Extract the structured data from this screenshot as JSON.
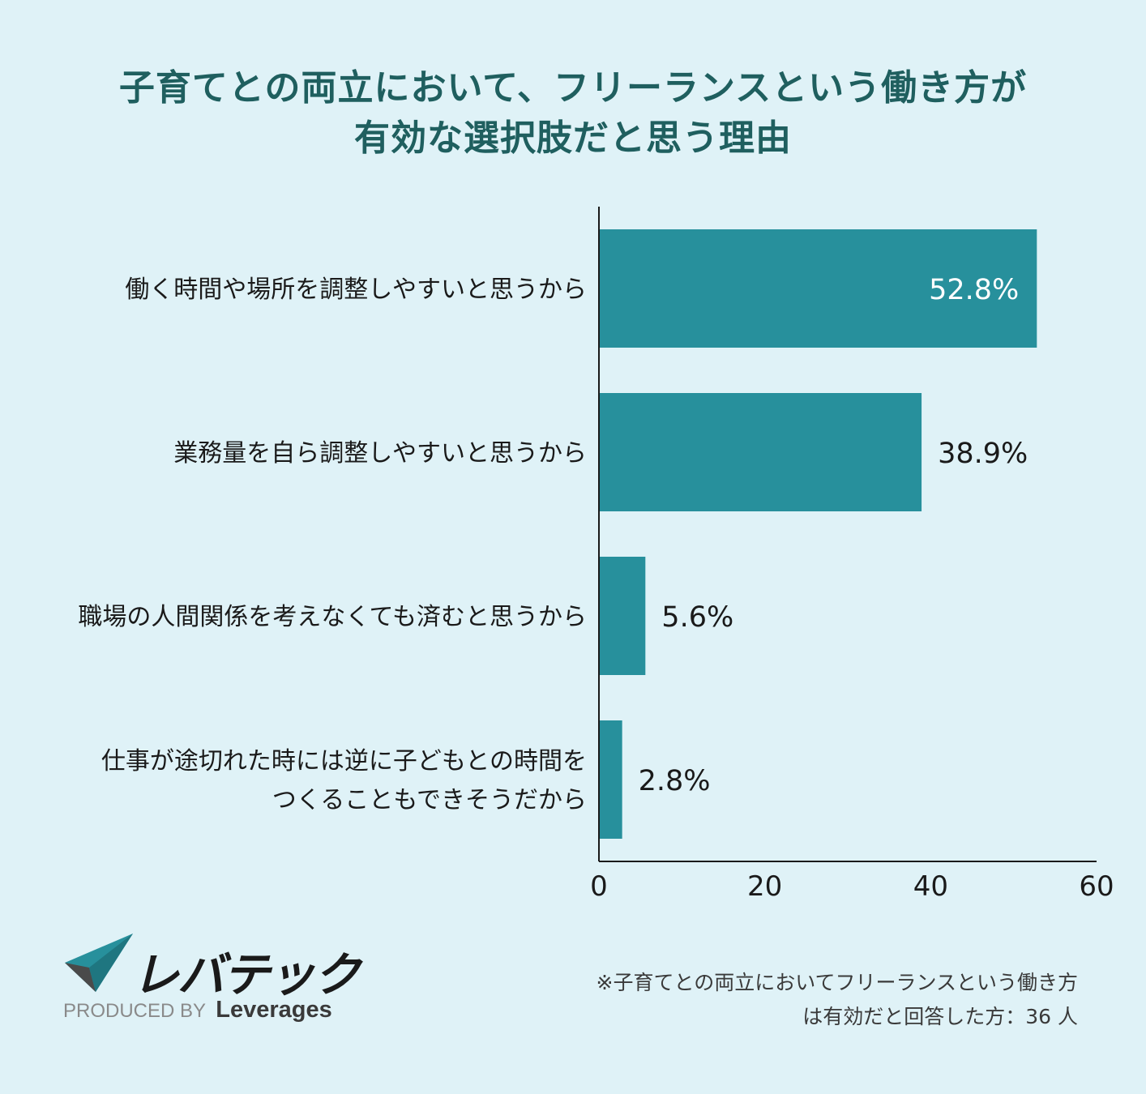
{
  "title": {
    "line1": "子育てとの両立において、フリーランスという働き方が",
    "line2": "有効な選択肢だと思う理由"
  },
  "chart_data": {
    "type": "bar",
    "orientation": "horizontal",
    "title": "子育てとの両立において、フリーランスという働き方が有効な選択肢だと思う理由",
    "categories": [
      [
        "働く時間や場所を調整しやすいと思うから"
      ],
      [
        "業務量を自ら調整しやすいと思うから"
      ],
      [
        "職場の人間関係を考えなくても済むと思うから"
      ],
      [
        "仕事が途切れた時には逆に子どもとの時間を",
        "つくることもできそうだから"
      ]
    ],
    "values": [
      52.8,
      38.9,
      5.6,
      2.8
    ],
    "data_labels": [
      "52.8%",
      "38.9%",
      "5.6%",
      "2.8%"
    ],
    "xlim": [
      0,
      60
    ],
    "x_ticks": [
      0,
      20,
      40,
      60
    ],
    "grid": false,
    "bar_color": "#27909c"
  },
  "logo": {
    "name": "レバテック",
    "produced_by": "PRODUCED BY",
    "brand": "Leverages"
  },
  "note": {
    "line1": "※子育てとの両立においてフリーランスという働き方",
    "line2": "は有効だと回答した方：36 人"
  },
  "colors": {
    "background": "#dff2f7",
    "title": "#1f5f5f",
    "bar": "#27909c",
    "text": "#1a1a1a"
  }
}
